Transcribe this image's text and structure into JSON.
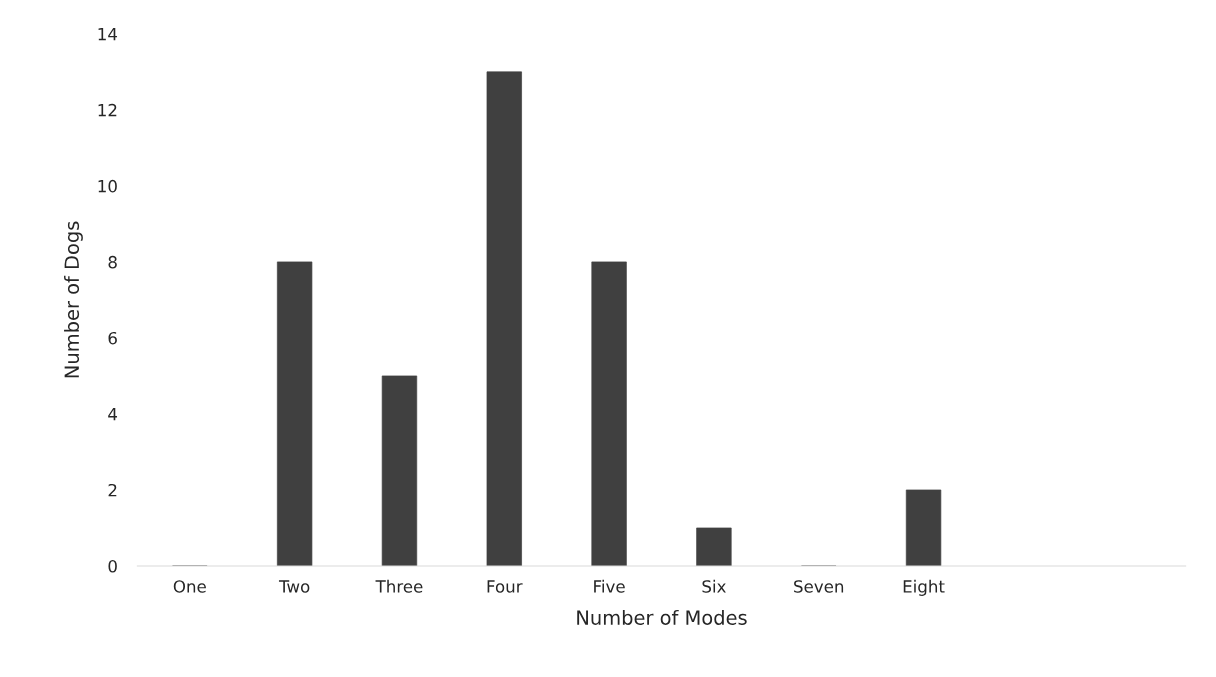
{
  "chart_data": {
    "type": "bar",
    "xlabel": "Number of Modes",
    "ylabel": "Number of Dogs",
    "categories": [
      "One",
      "Two",
      "Three",
      "Four",
      "Five",
      "Six",
      "Seven",
      "Eight",
      null,
      null
    ],
    "values": [
      0,
      8,
      5,
      13,
      8,
      1,
      0,
      2,
      null,
      null
    ],
    "color": "#404040",
    "ylim": [
      0,
      14
    ],
    "yticks": [
      0,
      2,
      4,
      6,
      8,
      10,
      12,
      14
    ],
    "grid": false,
    "legend": false
  }
}
